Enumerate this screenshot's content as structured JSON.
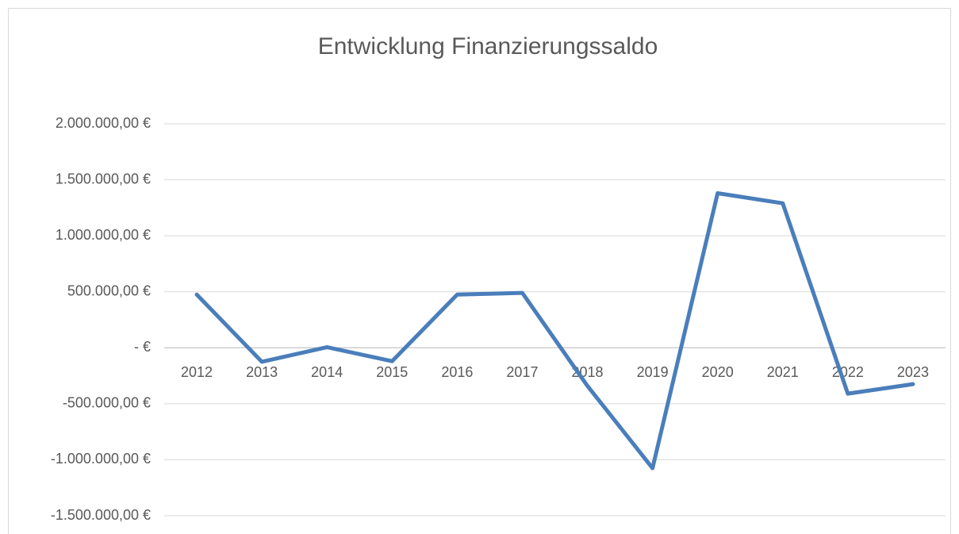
{
  "chart_data": {
    "type": "line",
    "title": "Entwicklung Finanzierungssaldo",
    "categories": [
      "2012",
      "2013",
      "2014",
      "2015",
      "2016",
      "2017",
      "2018",
      "2019",
      "2020",
      "2021",
      "2022",
      "2023"
    ],
    "series": [
      {
        "name": "Finanzierungssaldo",
        "color": "#4a7ebb",
        "values": [
          475000,
          -125000,
          5000,
          -120000,
          475000,
          490000,
          -340000,
          -1075000,
          1380000,
          1290000,
          -410000,
          -325000
        ]
      }
    ],
    "ylim": [
      -1500000,
      2000000
    ],
    "yticks": [
      {
        "value": -1500000,
        "label": "-1.500.000,00 €"
      },
      {
        "value": -1000000,
        "label": "-1.000.000,00 €"
      },
      {
        "value": -500000,
        "label": "-500.000,00 €"
      },
      {
        "value": 0,
        "label": "-   €"
      },
      {
        "value": 500000,
        "label": "500.000,00 €"
      },
      {
        "value": 1000000,
        "label": "1.000.000,00 €"
      },
      {
        "value": 1500000,
        "label": "1.500.000,00 €"
      },
      {
        "value": 2000000,
        "label": "2.000.000,00 €"
      }
    ],
    "grid": true,
    "legend": false
  }
}
